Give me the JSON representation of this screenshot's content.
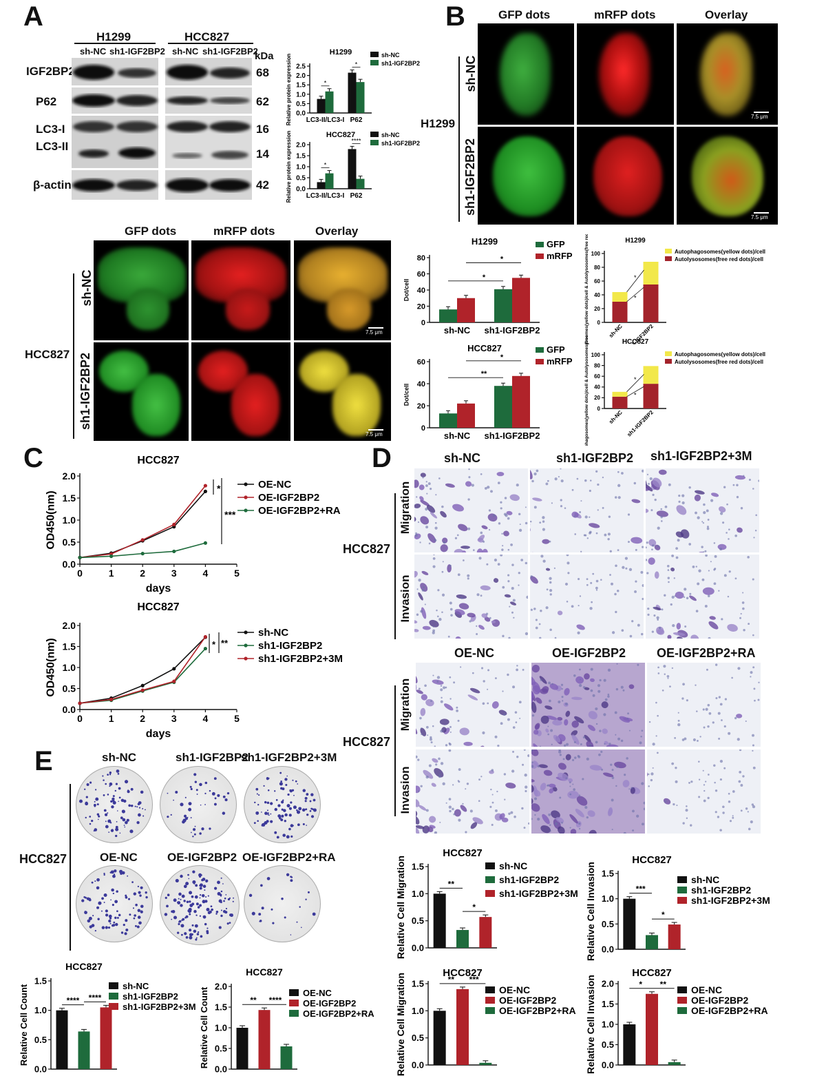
{
  "panels": {
    "A": "A",
    "B": "B",
    "C": "C",
    "D": "D",
    "E": "E"
  },
  "panelA": {
    "cell_h1299": "H1299",
    "cell_hcc827": "HCC827",
    "lanes": [
      "sh-NC",
      "sh1-IGF2BP2",
      "sh-NC",
      "sh1-IGF2BP2"
    ],
    "kda": "kDa",
    "proteins": [
      "IGF2BP2",
      "P62",
      "LC3-I",
      "LC3-II",
      "β-actin"
    ],
    "weights": [
      "68",
      "62",
      "16",
      "14",
      "42"
    ],
    "legend": [
      "sh-NC",
      "sh1-IGF2BP2"
    ],
    "ylabel": "Relative protein expression",
    "xcats": [
      "LC3-II/LC3-I",
      "P62"
    ]
  },
  "microscopy": {
    "headers": [
      "GFP dots",
      "mRFP dots",
      "Overlay"
    ],
    "rows": [
      "sh-NC",
      "sh1-IGF2BP2"
    ],
    "cell_h1299": "H1299",
    "cell_hcc827": "HCC827",
    "scale": "7.5 μm"
  },
  "dotsLegend": [
    "GFP",
    "mRFP"
  ],
  "dotsYlabel": "Dot/cell",
  "stackLegend": [
    "Autophagosomes(yellow dots)/cell",
    "Autolysosomes(free red dots)/cell"
  ],
  "stackYlabel": "Autophagosomes(yellow dots)/cell & Autolysosomes(free red dots)/cell",
  "panelC": {
    "title1": "HCC827",
    "title2": "HCC827",
    "ylabel": "OD450(nm)",
    "xlabel": "days",
    "legend1": [
      "OE-NC",
      "OE-IGF2BP2",
      "OE-IGF2BP2+RA"
    ],
    "legend2": [
      "sh-NC",
      "sh1-IGF2BP2",
      "sh1-IGF2BP2+3M"
    ],
    "sig1": [
      "*",
      "***"
    ],
    "sig2": [
      "*",
      "**"
    ]
  },
  "panelD": {
    "cols1": [
      "sh-NC",
      "sh1-IGF2BP2",
      "sh1-IGF2BP2+3M"
    ],
    "cols2": [
      "OE-NC",
      "OE-IGF2BP2",
      "OE-IGF2BP2+RA"
    ],
    "rows": [
      "Migration",
      "Invasion"
    ],
    "cell": "HCC827"
  },
  "panelE": {
    "cols1": [
      "sh-NC",
      "sh1-IGF2BP2",
      "sh1-IGF2BP2+3M"
    ],
    "cols2": [
      "OE-NC",
      "OE-IGF2BP2",
      "OE-IGF2BP2+RA"
    ],
    "cell": "HCC827"
  },
  "colors": {
    "black": "#111111",
    "green": "#1e6b3c",
    "red": "#b0232a",
    "yellow": "#f2e84a",
    "darkred": "#a3232b"
  },
  "chart_data": [
    {
      "id": "a_h1299",
      "type": "bar",
      "title": "H1299",
      "ylabel": "Relative protein expression",
      "categories": [
        "LC3-II/LC3-I",
        "P62"
      ],
      "ylim": [
        0,
        2.5
      ],
      "yticks": [
        "0.0",
        "0.5",
        "1.0",
        "1.5",
        "2.0",
        "2.5"
      ],
      "series": [
        {
          "name": "sh-NC",
          "values": [
            0.75,
            2.15
          ]
        },
        {
          "name": "sh1-IGF2BP2",
          "values": [
            1.15,
            1.65
          ]
        }
      ],
      "sig": [
        "*",
        "*"
      ]
    },
    {
      "id": "a_hcc827",
      "type": "bar",
      "title": "HCC827",
      "ylabel": "Relative protein expression",
      "categories": [
        "LC3-II/LC3-I",
        "P62"
      ],
      "ylim": [
        0,
        2.0
      ],
      "yticks": [
        "0.0",
        "0.5",
        "1.0",
        "1.5",
        "2.0"
      ],
      "series": [
        {
          "name": "sh-NC",
          "values": [
            0.3,
            1.8
          ]
        },
        {
          "name": "sh1-IGF2BP2",
          "values": [
            0.7,
            0.45
          ]
        }
      ],
      "sig": [
        "*",
        "****"
      ]
    },
    {
      "id": "dots_h1299",
      "type": "bar",
      "title": "H1299",
      "ylabel": "Dot/cell",
      "categories": [
        "sh-NC",
        "sh1-IGF2BP2"
      ],
      "ylim": [
        0,
        80
      ],
      "yticks": [
        "0",
        "20",
        "40",
        "60",
        "80"
      ],
      "series": [
        {
          "name": "GFP",
          "values": [
            16,
            41
          ]
        },
        {
          "name": "mRFP",
          "values": [
            30,
            55
          ]
        }
      ],
      "sig": [
        "*",
        "*"
      ]
    },
    {
      "id": "dots_hcc827",
      "type": "bar",
      "title": "HCC827",
      "ylabel": "Dot/cell",
      "categories": [
        "sh-NC",
        "sh1-IGF2BP2"
      ],
      "ylim": [
        0,
        60
      ],
      "yticks": [
        "0",
        "20",
        "40",
        "60"
      ],
      "series": [
        {
          "name": "GFP",
          "values": [
            13,
            38
          ]
        },
        {
          "name": "mRFP",
          "values": [
            22,
            47
          ]
        }
      ],
      "sig": [
        "**",
        "*"
      ]
    },
    {
      "id": "stack_h1299",
      "type": "bar",
      "title": "H1299",
      "categories": [
        "sh-NC",
        "sh1-IGF2BP2"
      ],
      "ylim": [
        0,
        100
      ],
      "yticks": [
        "0",
        "20",
        "40",
        "60",
        "80",
        "100"
      ],
      "series": [
        {
          "name": "Autolysosomes(free red dots)/cell",
          "values": [
            30,
            55
          ]
        },
        {
          "name": "Autophagosomes(yellow dots)/cell",
          "values": [
            14,
            33
          ]
        }
      ],
      "sig": [
        "*",
        "*"
      ]
    },
    {
      "id": "stack_hcc827",
      "type": "bar",
      "title": "HCC827",
      "categories": [
        "sh-NC",
        "sh1-IGF2BP2"
      ],
      "ylim": [
        0,
        100
      ],
      "yticks": [
        "0",
        "20",
        "40",
        "60",
        "80",
        "100"
      ],
      "series": [
        {
          "name": "Autolysosomes(free red dots)/cell",
          "values": [
            22,
            46
          ]
        },
        {
          "name": "Autophagosomes(yellow dots)/cell",
          "values": [
            9,
            33
          ]
        }
      ],
      "sig": [
        "*",
        "*"
      ]
    },
    {
      "id": "c_line1",
      "type": "line",
      "title": "HCC827",
      "xlabel": "days",
      "ylabel": "OD450(nm)",
      "x": [
        0,
        1,
        2,
        3,
        4
      ],
      "xlim": [
        0,
        5
      ],
      "ylim": [
        0,
        2.0
      ],
      "yticks": [
        "0.0",
        "0.5",
        "1.0",
        "1.5",
        "2.0"
      ],
      "xticks": [
        "0",
        "1",
        "2",
        "3",
        "4",
        "5"
      ],
      "series": [
        {
          "name": "OE-NC",
          "values": [
            0.15,
            0.25,
            0.53,
            0.85,
            1.65
          ]
        },
        {
          "name": "OE-IGF2BP2",
          "values": [
            0.15,
            0.23,
            0.55,
            0.9,
            1.78
          ]
        },
        {
          "name": "OE-IGF2BP2+RA",
          "values": [
            0.15,
            0.18,
            0.24,
            0.29,
            0.48
          ]
        }
      ]
    },
    {
      "id": "c_line2",
      "type": "line",
      "title": "HCC827",
      "xlabel": "days",
      "ylabel": "OD450(nm)",
      "x": [
        0,
        1,
        2,
        3,
        4
      ],
      "xlim": [
        0,
        5
      ],
      "ylim": [
        0,
        2.0
      ],
      "yticks": [
        "0.0",
        "0.5",
        "1.0",
        "1.5",
        "2.0"
      ],
      "xticks": [
        "0",
        "1",
        "2",
        "3",
        "4",
        "5"
      ],
      "series": [
        {
          "name": "sh-NC",
          "values": [
            0.15,
            0.27,
            0.57,
            0.97,
            1.72
          ]
        },
        {
          "name": "sh1-IGF2BP2",
          "values": [
            0.15,
            0.22,
            0.44,
            0.65,
            1.45
          ]
        },
        {
          "name": "sh1-IGF2BP2+3M",
          "values": [
            0.15,
            0.24,
            0.46,
            0.67,
            1.73
          ]
        }
      ]
    },
    {
      "id": "d_mig1",
      "type": "bar",
      "title": "HCC827",
      "ylabel": "Relative Cell Migration",
      "categories": [
        "sh-NC",
        "sh1-IGF2BP2",
        "sh1-IGF2BP2+3M"
      ],
      "ylim": [
        0,
        1.5
      ],
      "yticks": [
        "0.0",
        "0.5",
        "1.0",
        "1.5"
      ],
      "values": [
        1.0,
        0.33,
        0.57
      ],
      "sig": [
        "**",
        "*"
      ]
    },
    {
      "id": "d_inv1",
      "type": "bar",
      "title": "HCC827",
      "ylabel": "Relative Cell Invasion",
      "categories": [
        "sh-NC",
        "sh1-IGF2BP2",
        "sh1-IGF2BP2+3M"
      ],
      "ylim": [
        0,
        1.5
      ],
      "yticks": [
        "0.0",
        "0.5",
        "1.0",
        "1.5"
      ],
      "values": [
        1.0,
        0.28,
        0.49
      ],
      "sig": [
        "***",
        "*"
      ]
    },
    {
      "id": "d_mig2",
      "type": "bar",
      "title": "HCC827",
      "ylabel": "Relative Cell Migration",
      "categories": [
        "OE-NC",
        "OE-IGF2BP2",
        "OE-IGF2BP2+RA"
      ],
      "ylim": [
        0,
        1.5
      ],
      "yticks": [
        "0.0",
        "0.5",
        "1.0",
        "1.5"
      ],
      "values": [
        1.0,
        1.4,
        0.04
      ],
      "sig": [
        "**",
        "***"
      ]
    },
    {
      "id": "d_inv2",
      "type": "bar",
      "title": "HCC827",
      "ylabel": "Relative Cell Invasion",
      "categories": [
        "OE-NC",
        "OE-IGF2BP2",
        "OE-IGF2BP2+RA"
      ],
      "ylim": [
        0,
        2.0
      ],
      "yticks": [
        "0.0",
        "0.5",
        "1.0",
        "1.5",
        "2.0"
      ],
      "values": [
        1.0,
        1.75,
        0.07
      ],
      "sig": [
        "*",
        "**"
      ]
    },
    {
      "id": "e_count1",
      "type": "bar",
      "title": "HCC827",
      "ylabel": "Relative Cell Count",
      "categories": [
        "sh-NC",
        "sh1-IGF2BP2",
        "sh1-IGF2BP2+3M"
      ],
      "ylim": [
        0,
        1.5
      ],
      "yticks": [
        "0.0",
        "0.5",
        "1.0",
        "1.5"
      ],
      "values": [
        1.0,
        0.64,
        1.05
      ],
      "sig": [
        "****",
        "****"
      ]
    },
    {
      "id": "e_count2",
      "type": "bar",
      "title": "HCC827",
      "ylabel": "Relative Cell Count",
      "categories": [
        "OE-NC",
        "OE-IGF2BP2",
        "OE-IGF2BP2+RA"
      ],
      "ylim": [
        0,
        2.0
      ],
      "yticks": [
        "0.0",
        "0.5",
        "1.0",
        "1.5",
        "2.0"
      ],
      "values": [
        1.0,
        1.43,
        0.55
      ],
      "sig": [
        "**",
        "****"
      ]
    }
  ]
}
